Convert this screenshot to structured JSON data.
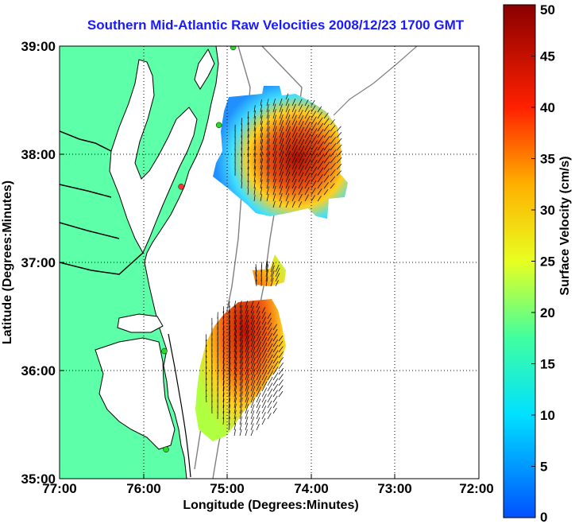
{
  "title": "Southern Mid-Atlantic Raw Velocities 2008/12/23 1700 GMT",
  "xlabel": "Longitude (Degrees:Minutes)",
  "ylabel": "Latitude (Degrees:Minutes)",
  "colorbar_label": "Surface Velocity (cm/s)",
  "x_ticks": [
    "77:00",
    "76:00",
    "75:00",
    "74:00",
    "73:00",
    "72:00"
  ],
  "y_ticks": [
    "39:00",
    "38:00",
    "37:00",
    "36:00",
    "35:00"
  ],
  "colorbar_ticks": [
    "50",
    "45",
    "40",
    "35",
    "30",
    "25",
    "20",
    "15",
    "10",
    "5",
    "0"
  ],
  "colors": {
    "title": "#1a1aff",
    "land": "#5effa9",
    "coastline": "#000000",
    "bathymetry": "#808080",
    "station": "#22dd22",
    "station_alt": "#ff3333"
  },
  "map": {
    "lon_range": [
      -77,
      -72
    ],
    "lat_range": [
      35,
      39
    ],
    "colorbar_range": [
      0,
      50
    ],
    "grid": "dotted",
    "stations": [
      {
        "lon": -74.93,
        "lat": 38.99,
        "color": "#22dd22"
      },
      {
        "lon": -75.1,
        "lat": 38.27,
        "color": "#22dd22"
      },
      {
        "lon": -75.55,
        "lat": 37.7,
        "color": "#ff3333"
      },
      {
        "lon": -75.75,
        "lat": 36.18,
        "color": "#22dd22"
      },
      {
        "lon": -75.73,
        "lat": 35.27,
        "color": "#22dd22"
      }
    ]
  }
}
